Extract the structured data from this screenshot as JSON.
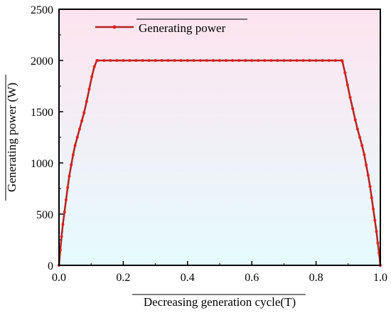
{
  "chart_data": {
    "type": "line",
    "title": "",
    "xlabel": "Decreasing generation cycle(T)",
    "ylabel": "Generating power (W)",
    "xlim": [
      0,
      1.0
    ],
    "ylim": [
      0,
      2500
    ],
    "xticks": [
      "0.0",
      "0.2",
      "0.4",
      "0.6",
      "0.8",
      "1.0"
    ],
    "yticks": [
      "0",
      "500",
      "1000",
      "1500",
      "2000",
      "2500"
    ],
    "grid": false,
    "legend_position": "top-left",
    "background_gradient": [
      "#fde4ef",
      "#e6fbfd"
    ],
    "series": [
      {
        "name": "Generating power",
        "color": "#b22222",
        "marker_color": "#e0201e",
        "x": [
          0.0,
          0.004,
          0.008,
          0.012,
          0.017,
          0.022,
          0.027,
          0.032,
          0.038,
          0.044,
          0.05,
          0.057,
          0.064,
          0.071,
          0.078,
          0.086,
          0.094,
          0.102,
          0.11,
          0.118,
          0.12,
          0.14,
          0.16,
          0.18,
          0.2,
          0.22,
          0.24,
          0.26,
          0.28,
          0.3,
          0.32,
          0.34,
          0.36,
          0.38,
          0.4,
          0.42,
          0.44,
          0.46,
          0.48,
          0.5,
          0.52,
          0.54,
          0.56,
          0.58,
          0.6,
          0.62,
          0.64,
          0.66,
          0.68,
          0.7,
          0.72,
          0.74,
          0.76,
          0.78,
          0.8,
          0.82,
          0.84,
          0.86,
          0.88,
          0.882,
          0.89,
          0.898,
          0.906,
          0.914,
          0.922,
          0.929,
          0.936,
          0.943,
          0.95,
          0.956,
          0.962,
          0.968,
          0.973,
          0.978,
          0.983,
          0.988,
          0.992,
          0.996,
          1.0
        ],
        "y": [
          0,
          150,
          280,
          400,
          520,
          640,
          760,
          870,
          980,
          1080,
          1170,
          1250,
          1330,
          1410,
          1490,
          1600,
          1720,
          1840,
          1940,
          2000,
          2000,
          2000,
          2000,
          2000,
          2000,
          2000,
          2000,
          2000,
          2000,
          2000,
          2000,
          2000,
          2000,
          2000,
          2000,
          2000,
          2000,
          2000,
          2000,
          2000,
          2000,
          2000,
          2000,
          2000,
          2000,
          2000,
          2000,
          2000,
          2000,
          2000,
          2000,
          2000,
          2000,
          2000,
          2000,
          2000,
          2000,
          2000,
          2000,
          1990,
          1880,
          1760,
          1640,
          1530,
          1420,
          1330,
          1250,
          1170,
          1080,
          980,
          880,
          770,
          660,
          550,
          440,
          330,
          220,
          120,
          0
        ]
      }
    ]
  }
}
